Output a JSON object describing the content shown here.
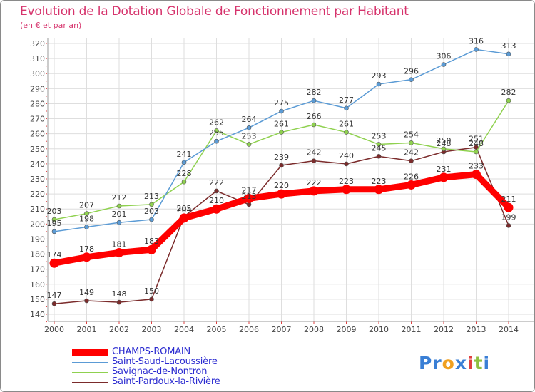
{
  "chart_data": {
    "type": "line",
    "title": "Evolution de la Dotation Globale de Fonctionnement par Habitant",
    "subtitle": "(en € et par an)",
    "xlabel": "",
    "ylabel": "",
    "x": [
      "2000",
      "2001",
      "2002",
      "2003",
      "2004",
      "2005",
      "2006",
      "2007",
      "2008",
      "2009",
      "2010",
      "2011",
      "2012",
      "2013",
      "2014"
    ],
    "ylim": [
      140,
      320
    ],
    "yticks": [
      140,
      150,
      160,
      170,
      180,
      190,
      200,
      210,
      220,
      230,
      240,
      250,
      260,
      270,
      280,
      290,
      300,
      310,
      320
    ],
    "grid": true,
    "series": [
      {
        "name": "CHAMPS-ROMAIN",
        "color": "#ff0000",
        "values": [
          174,
          178,
          181,
          183,
          204,
          210,
          217,
          220,
          222,
          223,
          223,
          226,
          231,
          233,
          211
        ]
      },
      {
        "name": "Saint-Saud-Lacoussière",
        "color": "#5b9bd5",
        "values": [
          195,
          198,
          201,
          203,
          241,
          255,
          264,
          275,
          282,
          277,
          293,
          296,
          306,
          316,
          313
        ]
      },
      {
        "name": "Savignac-de-Nontron",
        "color": "#8fd14f",
        "values": [
          203,
          207,
          212,
          213,
          228,
          262,
          253,
          261,
          266,
          261,
          253,
          254,
          250,
          248,
          282
        ]
      },
      {
        "name": "Saint-Pardoux-la-Rivière",
        "color": "#7b2b2b",
        "values": [
          147,
          149,
          148,
          150,
          205,
          222,
          213,
          239,
          242,
          240,
          245,
          242,
          248,
          251,
          199
        ]
      }
    ],
    "legend_position": "bottom-left"
  },
  "logo": {
    "text_parts": [
      "Pr",
      "o",
      "x",
      "i",
      "t",
      "i"
    ],
    "colors": [
      "#3a7fd5",
      "#f0a020",
      "#3a7fd5",
      "#e04040",
      "#8fc040",
      "#3a7fd5"
    ]
  }
}
